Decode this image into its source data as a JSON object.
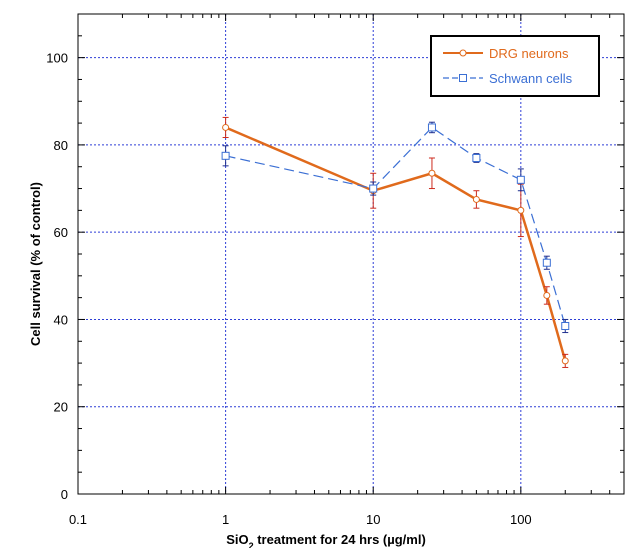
{
  "chart_data": {
    "type": "line",
    "title": "",
    "xlabel": {
      "prefix": "SiO",
      "subscript": "2",
      "suffix": " treatment for 24 hrs  (µg/ml)"
    },
    "ylabel": "Cell survival (% of control)",
    "x_scale": "log",
    "xlim": [
      0.1,
      500
    ],
    "ylim": [
      0,
      110
    ],
    "x_ticks": [
      0.1,
      1,
      10,
      100
    ],
    "x_tick_labels": [
      "0.1",
      "1",
      "10",
      "100"
    ],
    "y_ticks": [
      0,
      20,
      40,
      60,
      80,
      100
    ],
    "y_tick_labels": [
      "0",
      "20",
      "40",
      "60",
      "80",
      "100"
    ],
    "grid": true,
    "legend_position": "top-right",
    "series": [
      {
        "name": "DRG neurons",
        "color": "#e06a1c",
        "line_style": "solid",
        "marker": "circle",
        "x": [
          1,
          10,
          25,
          50,
          100,
          150,
          200
        ],
        "y": [
          84,
          69.5,
          73.5,
          67.5,
          65,
          45.5,
          30.5
        ],
        "error": [
          2.3,
          4,
          3.5,
          2,
          6,
          2,
          1.5
        ]
      },
      {
        "name": "Schwann cells",
        "color": "#3b6fd4",
        "line_style": "dashed",
        "marker": "square",
        "x": [
          1,
          10,
          25,
          50,
          100,
          150,
          200
        ],
        "y": [
          77.5,
          70,
          84,
          77,
          72,
          53,
          38.5
        ],
        "error": [
          2.3,
          1.5,
          1.2,
          1,
          2.5,
          1.5,
          1.5
        ]
      }
    ]
  }
}
